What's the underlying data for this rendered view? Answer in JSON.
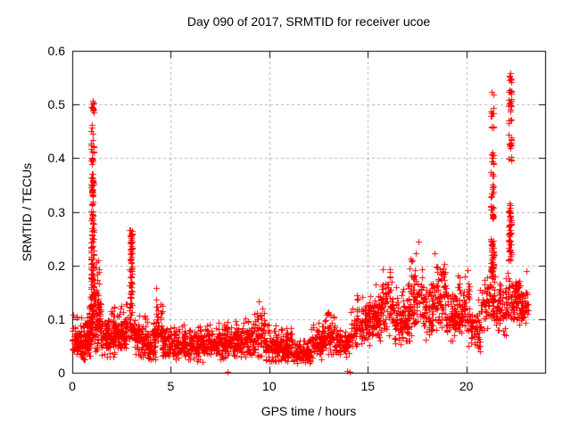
{
  "chart_data": {
    "type": "scatter",
    "title": "Day 090 of 2017, SRMTID for receiver ucoe",
    "xlabel": "GPS time / hours",
    "ylabel": "SRMTID / TECUs",
    "xlim": [
      0,
      24
    ],
    "ylim": [
      0,
      0.6
    ],
    "xticks": [
      0,
      5,
      10,
      15,
      20
    ],
    "xtick_labels": [
      "0",
      "5",
      "10",
      "15",
      "20"
    ],
    "yticks": [
      0,
      0.1,
      0.2,
      0.3,
      0.4,
      0.5,
      0.6
    ],
    "ytick_labels": [
      "0",
      "0.1",
      "0.2",
      "0.3",
      "0.4",
      "0.5",
      "0.6"
    ],
    "grid": true,
    "legend": "none",
    "marker": {
      "symbol": "plus",
      "color": "#ff0000",
      "size": 7
    },
    "colors": {
      "frame": "#000000",
      "grid": "#b0b0b0",
      "background": "#ffffff",
      "text": "#000000"
    },
    "seed": 20170090,
    "bands_format": [
      "hour_start",
      "hour_end",
      "count",
      "y_min",
      "y_max"
    ],
    "bands": [
      [
        0.0,
        0.9,
        150,
        0.025,
        0.11
      ],
      [
        0.85,
        1.15,
        48,
        0.05,
        0.155
      ],
      [
        1.1,
        1.5,
        55,
        0.04,
        0.16
      ],
      [
        1.45,
        2.1,
        90,
        0.03,
        0.12
      ],
      [
        2.1,
        2.72,
        80,
        0.035,
        0.125
      ],
      [
        2.7,
        3.15,
        45,
        0.05,
        0.13
      ],
      [
        3.1,
        3.75,
        70,
        0.03,
        0.11
      ],
      [
        3.7,
        4.3,
        70,
        0.025,
        0.1
      ],
      [
        4.2,
        4.6,
        42,
        0.04,
        0.16
      ],
      [
        4.55,
        5.2,
        78,
        0.025,
        0.1
      ],
      [
        5.2,
        6.0,
        95,
        0.02,
        0.09
      ],
      [
        6.0,
        7.0,
        110,
        0.02,
        0.095
      ],
      [
        7.0,
        7.8,
        90,
        0.025,
        0.1
      ],
      [
        7.8,
        8.6,
        90,
        0.03,
        0.105
      ],
      [
        8.6,
        9.2,
        70,
        0.03,
        0.11
      ],
      [
        9.2,
        9.8,
        70,
        0.03,
        0.135
      ],
      [
        9.8,
        10.5,
        80,
        0.02,
        0.09
      ],
      [
        10.5,
        11.2,
        80,
        0.02,
        0.085
      ],
      [
        11.2,
        12.1,
        100,
        0.015,
        0.062
      ],
      [
        12.1,
        12.7,
        70,
        0.025,
        0.1
      ],
      [
        12.6,
        13.3,
        70,
        0.035,
        0.125
      ],
      [
        13.3,
        14.05,
        70,
        0.03,
        0.09
      ],
      [
        14.1,
        14.45,
        35,
        0.04,
        0.125
      ],
      [
        14.4,
        15.1,
        75,
        0.05,
        0.145
      ],
      [
        15.0,
        15.7,
        75,
        0.06,
        0.17
      ],
      [
        15.6,
        16.3,
        75,
        0.07,
        0.205
      ],
      [
        16.3,
        17.1,
        85,
        0.05,
        0.165
      ],
      [
        17.0,
        17.8,
        85,
        0.07,
        0.225
      ],
      [
        17.8,
        18.3,
        55,
        0.06,
        0.18
      ],
      [
        18.3,
        19.0,
        75,
        0.08,
        0.225
      ],
      [
        19.0,
        19.6,
        65,
        0.06,
        0.18
      ],
      [
        19.5,
        20.15,
        70,
        0.07,
        0.195
      ],
      [
        20.1,
        20.8,
        65,
        0.03,
        0.155
      ],
      [
        20.8,
        21.5,
        70,
        0.08,
        0.2
      ],
      [
        21.5,
        22.12,
        65,
        0.07,
        0.19
      ],
      [
        22.1,
        22.6,
        55,
        0.09,
        0.2
      ],
      [
        22.55,
        23.05,
        50,
        0.09,
        0.195
      ],
      [
        22.95,
        23.15,
        12,
        0.1,
        0.165
      ]
    ],
    "spikes": [
      {
        "x": 1.02,
        "width": 0.16,
        "values": [
          0.505,
          0.5,
          0.5,
          0.497,
          0.493,
          0.49,
          0.487,
          0.46,
          0.45,
          0.43,
          0.425,
          0.42,
          0.415,
          0.41,
          0.4,
          0.395,
          0.39,
          0.37,
          0.365,
          0.36,
          0.358,
          0.355,
          0.35,
          0.347,
          0.343,
          0.34,
          0.337,
          0.333,
          0.33,
          0.32,
          0.31,
          0.3,
          0.295,
          0.29,
          0.287,
          0.283,
          0.28,
          0.27,
          0.265,
          0.26,
          0.255,
          0.25,
          0.245,
          0.24,
          0.235,
          0.23,
          0.225,
          0.22,
          0.215,
          0.21,
          0.205,
          0.2,
          0.195,
          0.19,
          0.185,
          0.18,
          0.175,
          0.17,
          0.165,
          0.16,
          0.155,
          0.15,
          0.145,
          0.14,
          0.135,
          0.13,
          0.125,
          0.12,
          0.115,
          0.11
        ]
      },
      {
        "x": 1.28,
        "width": 0.3,
        "values": [
          0.21,
          0.195,
          0.185,
          0.175,
          0.165,
          0.155,
          0.148,
          0.14,
          0.132,
          0.125,
          0.118,
          0.112
        ]
      },
      {
        "x": 2.98,
        "width": 0.14,
        "values": [
          0.265,
          0.262,
          0.258,
          0.255,
          0.252,
          0.248,
          0.245,
          0.24,
          0.235,
          0.23,
          0.225,
          0.22,
          0.215,
          0.21,
          0.205,
          0.2,
          0.195,
          0.19,
          0.185,
          0.18,
          0.175,
          0.17,
          0.165,
          0.16,
          0.155,
          0.15,
          0.145,
          0.14,
          0.135,
          0.13,
          0.125,
          0.12
        ]
      },
      {
        "x": 21.32,
        "width": 0.16,
        "values": [
          0.52,
          0.49,
          0.487,
          0.483,
          0.48,
          0.462,
          0.458,
          0.455,
          0.41,
          0.406,
          0.402,
          0.398,
          0.394,
          0.39,
          0.372,
          0.368,
          0.348,
          0.344,
          0.34,
          0.336,
          0.332,
          0.328,
          0.312,
          0.308,
          0.304,
          0.3,
          0.296,
          0.292,
          0.288,
          0.248,
          0.244,
          0.24,
          0.236,
          0.232,
          0.228,
          0.224,
          0.22,
          0.216,
          0.212,
          0.208,
          0.204,
          0.2,
          0.198,
          0.196,
          0.194,
          0.192,
          0.19,
          0.186,
          0.182,
          0.178
        ]
      },
      {
        "x": 22.22,
        "width": 0.16,
        "values": [
          0.555,
          0.55,
          0.545,
          0.54,
          0.527,
          0.523,
          0.52,
          0.51,
          0.505,
          0.5,
          0.495,
          0.49,
          0.472,
          0.468,
          0.44,
          0.436,
          0.432,
          0.428,
          0.424,
          0.42,
          0.4,
          0.396,
          0.315,
          0.31,
          0.305,
          0.3,
          0.296,
          0.292,
          0.288,
          0.284,
          0.28,
          0.276,
          0.272,
          0.268,
          0.264,
          0.26,
          0.256,
          0.252,
          0.248,
          0.244,
          0.24,
          0.236,
          0.232,
          0.228,
          0.224,
          0.22,
          0.215,
          0.21
        ]
      }
    ],
    "isolated_points": [
      [
        7.9,
        0.002
      ],
      [
        13.95,
        0.004
      ],
      [
        14.1,
        0.002
      ],
      [
        17.55,
        0.245
      ]
    ]
  }
}
